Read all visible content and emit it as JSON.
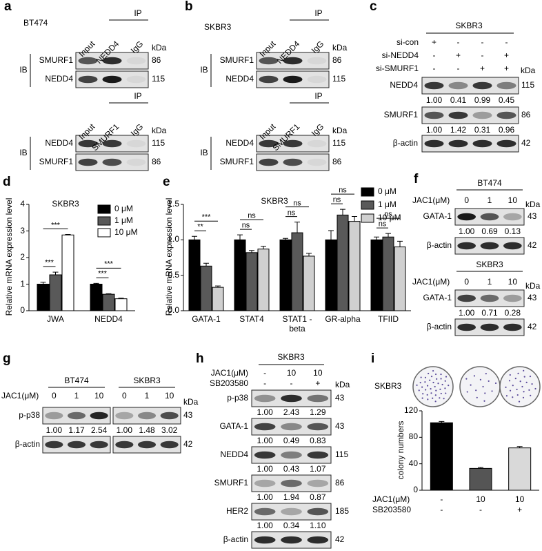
{
  "figure": {
    "a": {
      "letter": "a",
      "cell": "BT474",
      "blots": [
        {
          "ip": "IP",
          "lanes": [
            "Input",
            "NEDD4",
            "IgG"
          ],
          "ib": "IB",
          "kda_title": "kDa",
          "rows": [
            {
              "label": "SMURF1",
              "kda": 86
            },
            {
              "label": "NEDD4",
              "kda": 115
            }
          ]
        },
        {
          "ip": "IP",
          "lanes": [
            "Input",
            "SMURF1",
            "IgG"
          ],
          "ib": "IB",
          "kda_title": "kDa",
          "rows": [
            {
              "label": "NEDD4",
              "kda": 115
            },
            {
              "label": "SMURF1",
              "kda": 86
            }
          ]
        }
      ]
    },
    "b": {
      "letter": "b",
      "cell": "SKBR3",
      "blots": [
        {
          "ip": "IP",
          "lanes": [
            "Input",
            "NEDD4",
            "IgG"
          ],
          "ib": "IB",
          "kda_title": "kDa",
          "rows": [
            {
              "label": "SMURF1",
              "kda": 86
            },
            {
              "label": "NEDD4",
              "kda": 115
            }
          ]
        },
        {
          "ip": "IP",
          "lanes": [
            "Input",
            "SMURF1",
            "IgG"
          ],
          "ib": "IB",
          "kda_title": "kDa",
          "rows": [
            {
              "label": "NEDD4",
              "kda": 115
            },
            {
              "label": "SMURF1",
              "kda": 86
            }
          ]
        }
      ]
    },
    "c": {
      "letter": "c",
      "cell": "SKBR3",
      "conditions": [
        {
          "label": "si-con",
          "marks": [
            "+",
            "-",
            "-",
            "-"
          ]
        },
        {
          "label": "si-NEDD4",
          "marks": [
            "-",
            "+",
            "-",
            "+"
          ]
        },
        {
          "label": "si-SMURF1",
          "marks": [
            "-",
            "-",
            "+",
            "+"
          ]
        }
      ],
      "kda_title": "kDa",
      "rows": [
        {
          "label": "NEDD4",
          "kda": 115,
          "quant": [
            "1.00",
            "0.41",
            "0.99",
            "0.45"
          ]
        },
        {
          "label": "SMURF1",
          "kda": 86,
          "quant": [
            "1.00",
            "1.42",
            "0.31",
            "0.96"
          ]
        },
        {
          "label": "β-actin",
          "kda": 42
        }
      ]
    },
    "f": {
      "letter": "f",
      "blocks": [
        {
          "cell": "BT474",
          "treatment": "JAC1(μM)",
          "doses": [
            0,
            1,
            10
          ],
          "kda_title": "kDa",
          "rows": [
            {
              "label": "GATA-1",
              "kda": 43,
              "quant": [
                "1.00",
                "0.69",
                "0.13"
              ]
            },
            {
              "label": "β-actin",
              "kda": 42
            }
          ]
        },
        {
          "cell": "SKBR3",
          "treatment": "JAC1(μM)",
          "doses": [
            0,
            1,
            10
          ],
          "kda_title": "kDa",
          "rows": [
            {
              "label": "GATA-1",
              "kda": 43,
              "quant": [
                "1.00",
                "0.71",
                "0.28"
              ]
            },
            {
              "label": "β-actin",
              "kda": 42
            }
          ]
        }
      ]
    },
    "g": {
      "letter": "g",
      "treatment": "JAC1(μM)",
      "kda_title": "kDa",
      "blocks": [
        {
          "cell": "BT474",
          "doses": [
            0,
            1,
            10
          ],
          "quant": [
            "1.00",
            "1.17",
            "2.54"
          ]
        },
        {
          "cell": "SKBR3",
          "doses": [
            0,
            1,
            10
          ],
          "quant": [
            "1.00",
            "1.48",
            "3.02"
          ]
        }
      ],
      "rows": [
        {
          "label": "p-p38",
          "kda": 43
        },
        {
          "label": "β-actin",
          "kda": 42
        }
      ]
    },
    "h": {
      "letter": "h",
      "cell": "SKBR3",
      "conditions": [
        {
          "label": "JAC1(μM)",
          "marks": [
            "-",
            "10",
            "10"
          ]
        },
        {
          "label": "SB203580",
          "marks": [
            "-",
            "-",
            "+"
          ]
        }
      ],
      "kda_title": "kDa",
      "rows": [
        {
          "label": "p-p38",
          "kda": 43,
          "quant": [
            "1.00",
            "2.43",
            "1.29"
          ]
        },
        {
          "label": "GATA-1",
          "kda": 43,
          "quant": [
            "1.00",
            "0.49",
            "0.83"
          ]
        },
        {
          "label": "NEDD4",
          "kda": 115,
          "quant": [
            "1.00",
            "0.43",
            "1.07"
          ]
        },
        {
          "label": "SMURF1",
          "kda": 86,
          "quant": [
            "1.00",
            "1.94",
            "0.87"
          ]
        },
        {
          "label": "HER2",
          "kda": 185,
          "quant": [
            "1.00",
            "0.34",
            "1.10"
          ]
        },
        {
          "label": "β-actin",
          "kda": 42
        }
      ]
    }
  },
  "chart_data": [
    {
      "panel": "d",
      "type": "bar",
      "title": "SKBR3",
      "y_label": "Relative mRNA expression level",
      "categories": [
        "JWA",
        "NEDD4"
      ],
      "series": [
        {
          "name": "0 μM",
          "color": "#000000",
          "values": [
            1.0,
            1.0
          ],
          "errors": [
            0.07,
            0.03
          ]
        },
        {
          "name": "1 μM",
          "color": "#595959",
          "values": [
            1.35,
            0.62
          ],
          "errors": [
            0.1,
            0.02
          ]
        },
        {
          "name": "10 μM",
          "color": "#ffffff",
          "values": [
            2.85,
            0.45
          ],
          "errors": [
            0.02,
            0.02
          ]
        }
      ],
      "ylim": [
        0,
        4
      ],
      "yticks": [
        0,
        1,
        2,
        3,
        4
      ],
      "annotations": [
        "***",
        "***",
        "***",
        "***"
      ]
    },
    {
      "panel": "e",
      "type": "bar",
      "title": "SKBR3",
      "y_label": "Relative mRNA expression level",
      "categories": [
        "GATA-1",
        "STAT4",
        "STAT1 -beta",
        "GR-alpha",
        "TFIID"
      ],
      "series": [
        {
          "name": "0 μM",
          "color": "#000000",
          "values": [
            1.0,
            1.0,
            1.0,
            1.0,
            1.0
          ],
          "errors": [
            0.05,
            0.07,
            0.02,
            0.13,
            0.04
          ]
        },
        {
          "name": "1 μM",
          "color": "#595959",
          "values": [
            0.63,
            0.82,
            1.1,
            1.35,
            1.04
          ],
          "errors": [
            0.04,
            0.03,
            0.15,
            0.08,
            0.05
          ]
        },
        {
          "name": "10 μM",
          "color": "#d0d0d0",
          "values": [
            0.33,
            0.87,
            0.77,
            1.26,
            0.9
          ],
          "errors": [
            0.02,
            0.04,
            0.04,
            0.07,
            0.08
          ]
        }
      ],
      "ylim": [
        0,
        1.5
      ],
      "yticks": [
        {
          "value": 0,
          "label": "0.0"
        },
        0.5,
        {
          "value": 1,
          "label": "1.0"
        },
        1.5
      ],
      "annotations": [
        "***",
        "**",
        "ns",
        "ns",
        "ns",
        "ns",
        "ns",
        "ns",
        "ns",
        "ns"
      ]
    },
    {
      "panel": "i",
      "type": "bar",
      "cell": "SKBR3",
      "y_label": "colony numbers",
      "categories": [
        null,
        null,
        null
      ],
      "values": [
        102,
        33,
        64
      ],
      "errors": [
        2,
        1.5,
        2
      ],
      "colors": [
        "#000000",
        "#555555",
        "#d9d9d9"
      ],
      "ylim": [
        0,
        120
      ],
      "yticks": [
        0,
        40,
        80,
        120
      ],
      "treatments": [
        {
          "label": "JAC1(μM)",
          "marks": [
            "-",
            "10",
            "10"
          ]
        },
        {
          "label": "SB203580",
          "marks": [
            "-",
            "-",
            "+"
          ]
        }
      ]
    }
  ]
}
